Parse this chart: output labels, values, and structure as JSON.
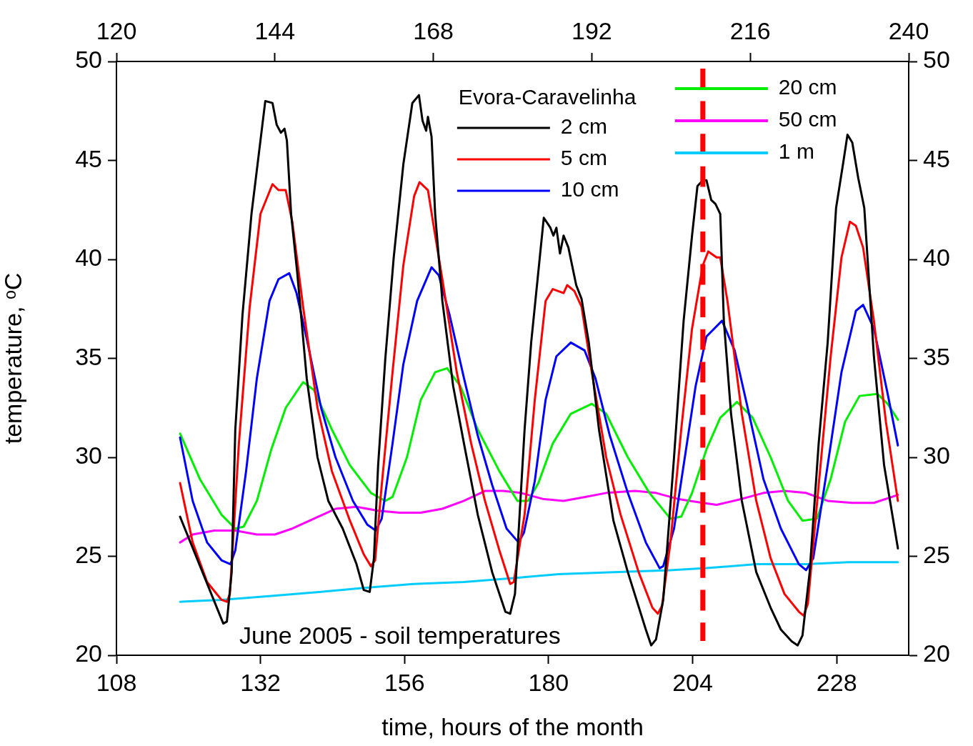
{
  "chart_data": {
    "type": "line",
    "xlabel": "time, hours of the month",
    "ylabel": "temperature, ᵒC",
    "legend_title": "Evora-Caravelinha",
    "legend": "top",
    "grid": false,
    "marker": "none",
    "line_style": "solid",
    "annotations": [
      "June 2005 - soil temperatures"
    ],
    "xlim": [
      108,
      240
    ],
    "xticks": [
      108,
      132,
      156,
      180,
      204,
      228
    ],
    "x2lim": [
      120,
      240
    ],
    "x2ticks": [
      120,
      144,
      168,
      192,
      216,
      240
    ],
    "ylim": [
      20,
      50
    ],
    "yticks": [
      20,
      25,
      30,
      35,
      40,
      45,
      50
    ],
    "y2lim": [
      20,
      50
    ],
    "y2ticks": [
      20,
      25,
      30,
      35,
      40,
      45,
      50
    ],
    "ref_lines": [
      {
        "axis": "x",
        "value": 205.7,
        "label": null,
        "color": "#ff0000",
        "line_style": "dashed"
      }
    ],
    "series": [
      {
        "name": "2 cm",
        "color": "#000000",
        "x": [
          118.6,
          125.8,
          126.4,
          127.2,
          127.8,
          129.0,
          130.5,
          132.8,
          134.0,
          134.7,
          135.4,
          136.0,
          136.4,
          137.1,
          138.1,
          139.7,
          141.5,
          143.3,
          145.7,
          148.0,
          149.2,
          150.2,
          150.9,
          151.6,
          152.8,
          154.2,
          155.8,
          157.3,
          158.4,
          159.0,
          159.6,
          159.9,
          160.5,
          161.1,
          162.3,
          164.1,
          165.9,
          168.2,
          170.6,
          172.8,
          173.6,
          174.4,
          176.0,
          177.1,
          178.3,
          179.2,
          180.3,
          180.8,
          181.3,
          181.9,
          182.5,
          183.3,
          184.6,
          185.5,
          186.7,
          188.4,
          190.8,
          193.2,
          196.2,
          197.1,
          197.9,
          199.1,
          200.9,
          202.5,
          203.9,
          204.8,
          205.7,
          206.3,
          207.1,
          207.8,
          208.6,
          209.2,
          210.4,
          212.2,
          214.6,
          217.0,
          218.7,
          220.5,
          221.5,
          222.3,
          223.5,
          225.0,
          226.5,
          227.9,
          229.1,
          229.8,
          230.6,
          231.6,
          232.6,
          234.2,
          235.9,
          238.2
        ],
        "values": [
          27.0,
          21.6,
          21.7,
          24.2,
          31.4,
          37.2,
          42.3,
          48.0,
          47.9,
          46.8,
          46.4,
          46.6,
          46.0,
          42.3,
          39.4,
          34.0,
          30.0,
          27.8,
          26.4,
          24.6,
          23.3,
          23.2,
          24.9,
          29.6,
          35.0,
          40.1,
          44.8,
          47.9,
          48.3,
          47.0,
          46.5,
          47.2,
          46.2,
          42.3,
          37.9,
          33.6,
          30.7,
          27.1,
          24.2,
          22.2,
          22.1,
          23.1,
          31.4,
          35.8,
          39.4,
          42.1,
          41.6,
          41.2,
          41.6,
          40.3,
          41.2,
          40.6,
          38.7,
          38.0,
          35.8,
          31.4,
          26.8,
          24.2,
          21.3,
          20.5,
          20.8,
          22.8,
          30.0,
          36.9,
          41.2,
          43.7,
          44.0,
          44.0,
          43.0,
          42.8,
          42.3,
          36.9,
          32.2,
          27.8,
          24.2,
          22.4,
          21.3,
          20.7,
          20.5,
          21.0,
          24.2,
          30.7,
          35.8,
          42.6,
          44.9,
          46.3,
          45.9,
          44.1,
          42.6,
          35.1,
          29.6,
          25.4
        ]
      },
      {
        "name": "5 cm",
        "color": "#ff0000",
        "x": [
          118.6,
          120.7,
          123.1,
          125.5,
          126.4,
          126.9,
          128.4,
          130.2,
          132.0,
          134.0,
          135.0,
          136.2,
          137.3,
          139.1,
          141.5,
          143.9,
          146.9,
          149.2,
          150.4,
          151.1,
          152.2,
          154.0,
          155.8,
          157.6,
          158.5,
          159.9,
          160.9,
          162.3,
          164.7,
          167.1,
          169.4,
          171.8,
          173.6,
          174.2,
          176.0,
          177.7,
          179.5,
          180.7,
          182.5,
          183.1,
          184.3,
          185.5,
          187.2,
          189.6,
          192.0,
          195.0,
          197.3,
          198.2,
          198.9,
          200.3,
          202.1,
          203.9,
          205.7,
          206.6,
          208.0,
          208.6,
          209.8,
          212.2,
          214.6,
          217.0,
          219.3,
          221.7,
          222.5,
          223.2,
          225.0,
          227.0,
          228.8,
          230.2,
          231.2,
          232.4,
          234.2,
          236.2,
          238.2
        ],
        "values": [
          28.7,
          25.7,
          23.7,
          22.8,
          22.7,
          23.1,
          30.7,
          37.6,
          42.3,
          43.8,
          43.5,
          43.5,
          41.9,
          37.6,
          32.5,
          29.3,
          26.8,
          25.1,
          24.5,
          24.8,
          28.6,
          34.3,
          39.7,
          43.2,
          43.9,
          43.5,
          41.6,
          39.0,
          34.3,
          30.7,
          27.8,
          25.3,
          23.6,
          23.7,
          27.1,
          32.9,
          37.9,
          38.5,
          38.3,
          38.7,
          38.4,
          37.6,
          34.3,
          30.0,
          27.1,
          24.2,
          22.4,
          22.1,
          22.5,
          25.7,
          31.4,
          36.5,
          39.7,
          40.4,
          40.1,
          40.1,
          37.9,
          32.2,
          27.8,
          24.9,
          23.1,
          22.2,
          22.0,
          22.6,
          28.6,
          35.1,
          40.1,
          41.9,
          41.7,
          40.6,
          36.9,
          31.8,
          27.8
        ]
      },
      {
        "name": "10 cm",
        "color": "#0000ff",
        "x": [
          118.6,
          120.7,
          123.1,
          125.5,
          127.0,
          127.8,
          129.6,
          131.4,
          133.5,
          135.0,
          136.8,
          138.0,
          139.7,
          142.1,
          144.5,
          147.4,
          149.8,
          151.2,
          152.2,
          154.0,
          155.8,
          158.1,
          160.5,
          161.7,
          163.5,
          165.9,
          168.2,
          170.6,
          173.0,
          175.0,
          175.9,
          177.7,
          179.5,
          181.3,
          183.7,
          186.0,
          187.8,
          190.2,
          193.2,
          196.2,
          198.5,
          199.1,
          200.9,
          202.7,
          204.5,
          206.3,
          208.9,
          211.0,
          213.4,
          215.8,
          218.7,
          221.7,
          222.9,
          224.1,
          226.5,
          228.8,
          231.2,
          232.4,
          234.2,
          236.5,
          238.2
        ],
        "values": [
          31.0,
          27.8,
          25.7,
          24.8,
          24.6,
          25.3,
          29.3,
          34.0,
          37.9,
          39.0,
          39.3,
          38.3,
          36.0,
          32.5,
          30.0,
          27.8,
          26.6,
          26.3,
          26.9,
          30.7,
          34.7,
          37.9,
          39.6,
          39.2,
          37.2,
          34.0,
          31.1,
          28.6,
          26.4,
          25.7,
          26.2,
          28.8,
          32.9,
          35.1,
          35.8,
          35.4,
          34.0,
          31.1,
          28.2,
          25.7,
          24.4,
          24.5,
          26.4,
          30.0,
          33.6,
          36.1,
          36.9,
          35.4,
          32.2,
          28.9,
          26.4,
          24.6,
          24.3,
          24.9,
          29.6,
          34.3,
          37.4,
          37.7,
          36.5,
          33.2,
          30.6
        ]
      },
      {
        "name": "20 cm",
        "color": "#00ee00",
        "x": [
          118.6,
          121.9,
          125.5,
          127.8,
          129.2,
          131.4,
          133.8,
          136.2,
          139.1,
          140.9,
          143.9,
          146.9,
          150.4,
          152.8,
          154.0,
          156.4,
          158.7,
          161.1,
          163.1,
          165.3,
          168.2,
          171.8,
          174.8,
          176.6,
          178.3,
          180.7,
          183.7,
          187.2,
          189.6,
          193.2,
          196.8,
          200.3,
          202.1,
          203.9,
          206.3,
          208.6,
          211.4,
          214.0,
          217.0,
          219.9,
          222.3,
          224.7,
          227.0,
          229.4,
          231.8,
          234.8,
          236.5,
          238.2
        ],
        "values": [
          31.2,
          28.9,
          27.1,
          26.4,
          26.5,
          27.8,
          30.4,
          32.5,
          33.8,
          33.4,
          31.4,
          29.6,
          28.2,
          27.8,
          28.0,
          30.0,
          32.9,
          34.3,
          34.5,
          33.6,
          31.4,
          29.3,
          27.8,
          27.8,
          28.7,
          30.7,
          32.2,
          32.7,
          32.2,
          30.0,
          28.2,
          26.9,
          27.0,
          28.2,
          30.4,
          32.0,
          32.8,
          32.0,
          30.0,
          27.8,
          26.8,
          26.9,
          28.9,
          31.8,
          33.1,
          33.2,
          32.7,
          31.9
        ]
      },
      {
        "name": "50 cm",
        "color": "#ff00ff",
        "x": [
          118.6,
          120.7,
          124.3,
          127.8,
          131.4,
          134.4,
          137.3,
          140.9,
          144.5,
          148.0,
          151.6,
          155.2,
          158.7,
          162.3,
          165.9,
          169.4,
          172.4,
          175.4,
          179.0,
          182.5,
          186.1,
          189.6,
          194.4,
          197.9,
          201.5,
          205.7,
          208.0,
          212.2,
          215.8,
          219.3,
          222.9,
          226.5,
          230.6,
          234.2,
          238.2
        ],
        "values": [
          25.7,
          26.1,
          26.3,
          26.3,
          26.1,
          26.1,
          26.4,
          26.9,
          27.4,
          27.5,
          27.3,
          27.2,
          27.2,
          27.4,
          27.8,
          28.3,
          28.3,
          28.2,
          27.9,
          27.8,
          28.0,
          28.2,
          28.3,
          28.2,
          27.9,
          27.7,
          27.6,
          27.9,
          28.2,
          28.3,
          28.2,
          27.8,
          27.7,
          27.7,
          28.1
        ]
      },
      {
        "name": "1 m",
        "color": "#00ccff",
        "x": [
          118.6,
          125.5,
          133.8,
          142.1,
          149.2,
          157.5,
          165.9,
          174.2,
          181.7,
          190.8,
          200.3,
          206.3,
          214.6,
          222.9,
          230.0,
          238.2
        ],
        "values": [
          22.7,
          22.8,
          23.0,
          23.2,
          23.4,
          23.6,
          23.7,
          23.9,
          24.1,
          24.2,
          24.3,
          24.4,
          24.6,
          24.6,
          24.7,
          24.7
        ]
      }
    ]
  }
}
